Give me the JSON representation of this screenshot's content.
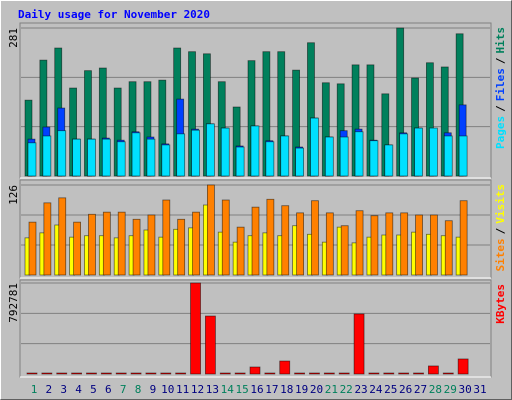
{
  "legend_separator": "/",
  "chart_data": [
    {
      "type": "bar",
      "title": "Daily usage for November 2020",
      "ylim": [
        0,
        281
      ],
      "yticks": [
        281
      ],
      "series": [
        {
          "name": "Hits",
          "color": "#00805c",
          "values": [
            144,
            220,
            243,
            167,
            200,
            205,
            167,
            179,
            179,
            182,
            243,
            236,
            232,
            179,
            131,
            219,
            236,
            236,
            201,
            253,
            177,
            175,
            211,
            211,
            156,
            281,
            186,
            215,
            207,
            270,
            null
          ]
        },
        {
          "name": "Files",
          "color": "#0040ff",
          "values": [
            70,
            93,
            129,
            70,
            70,
            72,
            68,
            84,
            74,
            61,
            146,
            89,
            99,
            91,
            57,
            95,
            67,
            76,
            55,
            110,
            74,
            86,
            89,
            68,
            59,
            82,
            91,
            87,
            82,
            135,
            null
          ]
        },
        {
          "name": "Pages",
          "color": "#00e0ff",
          "values": [
            63,
            76,
            86,
            70,
            70,
            70,
            65,
            82,
            70,
            59,
            80,
            87,
            99,
            91,
            55,
            95,
            65,
            76,
            53,
            110,
            74,
            74,
            84,
            67,
            59,
            80,
            91,
            91,
            76,
            76,
            null
          ]
        }
      ]
    },
    {
      "type": "bar",
      "ylim": [
        0,
        126
      ],
      "yticks": [
        126
      ],
      "series": [
        {
          "name": "Visits",
          "color": "#ffff00",
          "values": [
            52,
            59,
            70,
            53,
            55,
            55,
            52,
            55,
            63,
            53,
            64,
            66,
            98,
            60,
            46,
            55,
            59,
            55,
            69,
            57,
            46,
            67,
            45,
            53,
            56,
            56,
            60,
            57,
            55,
            53,
            null
          ]
        },
        {
          "name": "Sites",
          "color": "#ff8000",
          "values": [
            74,
            101,
            108,
            74,
            85,
            88,
            88,
            78,
            84,
            105,
            78,
            88,
            126,
            105,
            67,
            95,
            106,
            97,
            87,
            104,
            87,
            69,
            90,
            83,
            87,
            87,
            84,
            84,
            76,
            104,
            null
          ]
        }
      ]
    },
    {
      "type": "bar",
      "ylim": [
        0,
        792781
      ],
      "yticks": [
        792781
      ],
      "categories": [
        "1",
        "2",
        "3",
        "4",
        "5",
        "6",
        "7",
        "8",
        "9",
        "10",
        "11",
        "12",
        "13",
        "14",
        "15",
        "16",
        "17",
        "18",
        "19",
        "20",
        "21",
        "22",
        "23",
        "24",
        "25",
        "26",
        "27",
        "28",
        "29",
        "30",
        "31"
      ],
      "category_colors": [
        "#00805c",
        "#000080",
        "#000080",
        "#000080",
        "#000080",
        "#000080",
        "#00805c",
        "#00805c",
        "#000080",
        "#000080",
        "#000080",
        "#000080",
        "#000080",
        "#00805c",
        "#00805c",
        "#000080",
        "#000080",
        "#000080",
        "#000080",
        "#000080",
        "#00805c",
        "#00805c",
        "#000080",
        "#000080",
        "#000080",
        "#000080",
        "#000080",
        "#00805c",
        "#00805c",
        "#000080",
        "#000080"
      ],
      "series": [
        {
          "name": "KBytes",
          "color": "#ff0000",
          "values": [
            8700,
            8700,
            8700,
            8700,
            8700,
            8700,
            8700,
            8700,
            8700,
            8700,
            8700,
            792781,
            505000,
            8700,
            8700,
            61000,
            8700,
            113000,
            8700,
            8700,
            8700,
            8700,
            523000,
            8700,
            8700,
            8700,
            8700,
            70000,
            8700,
            131000,
            null
          ]
        }
      ]
    }
  ]
}
